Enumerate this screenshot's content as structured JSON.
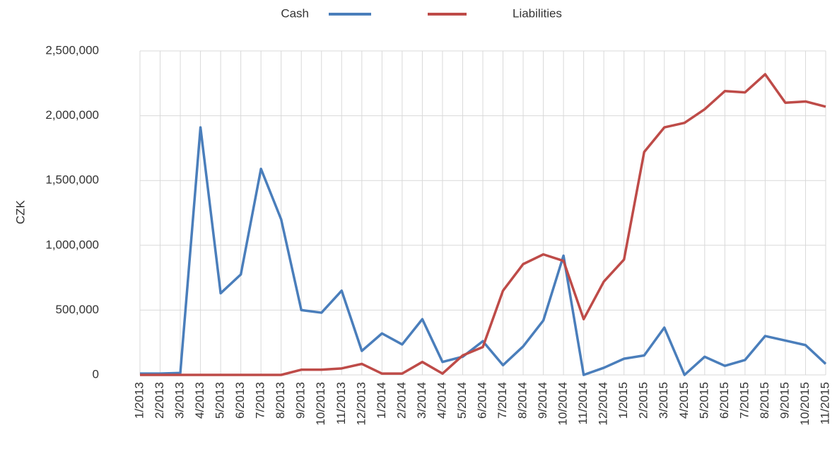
{
  "chart_data": {
    "type": "line",
    "y_label": "CZK",
    "categories": [
      "1/2013",
      "2/2013",
      "3/2013",
      "4/2013",
      "5/2013",
      "6/2013",
      "7/2013",
      "8/2013",
      "9/2013",
      "10/2013",
      "11/2013",
      "12/2013",
      "1/2014",
      "2/2014",
      "3/2014",
      "4/2014",
      "5/2014",
      "6/2014",
      "7/2014",
      "8/2014",
      "9/2014",
      "10/2014",
      "11/2014",
      "12/2014",
      "1/2015",
      "2/2015",
      "3/2015",
      "4/2015",
      "5/2015",
      "6/2015",
      "7/2015",
      "8/2015",
      "9/2015",
      "10/2015",
      "11/2015"
    ],
    "series": [
      {
        "name": "Cash",
        "color": "#4a7ebb",
        "values": [
          10000,
          10000,
          15000,
          1910000,
          630000,
          775000,
          1590000,
          1200000,
          500000,
          480000,
          650000,
          185000,
          320000,
          235000,
          430000,
          100000,
          140000,
          260000,
          75000,
          220000,
          420000,
          920000,
          0,
          55000,
          125000,
          150000,
          365000,
          0,
          140000,
          70000,
          115000,
          300000,
          265000,
          230000,
          85000
        ]
      },
      {
        "name": "Liabilities",
        "color": "#be4b48",
        "values": [
          0,
          0,
          0,
          0,
          0,
          0,
          0,
          0,
          40000,
          40000,
          50000,
          85000,
          10000,
          10000,
          100000,
          10000,
          150000,
          215000,
          650000,
          855000,
          930000,
          880000,
          430000,
          720000,
          890000,
          1720000,
          1910000,
          1945000,
          2050000,
          2190000,
          2180000,
          2320000,
          2100000,
          2110000,
          2070000
        ]
      }
    ],
    "ylim": [
      0,
      2500000
    ],
    "yticks": [
      0,
      {
        "value": 500000,
        "label": "500,000"
      },
      {
        "value": 1000000,
        "label": "1,000,000"
      },
      {
        "value": 1500000,
        "label": "1,500,000"
      },
      {
        "value": 2000000,
        "label": "2,000,000"
      },
      {
        "value": 2500000,
        "label": "2,500,000"
      }
    ],
    "grid": true,
    "legend": "top"
  }
}
